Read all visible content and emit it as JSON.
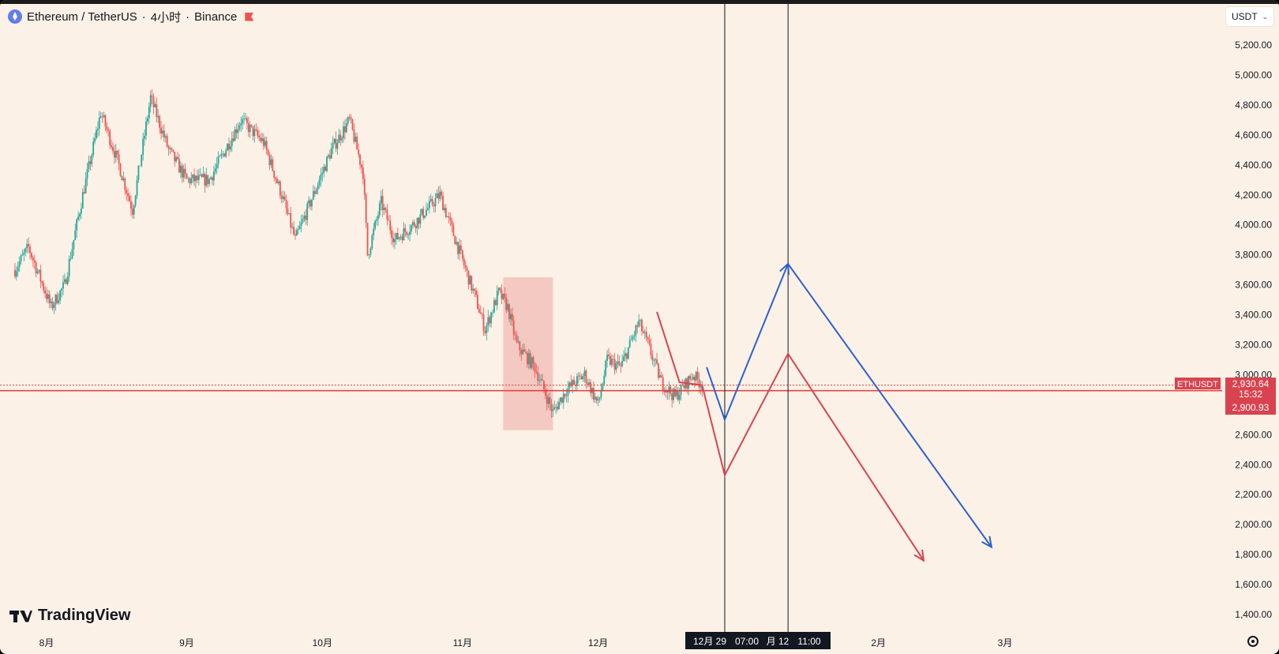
{
  "header": {
    "symbol": "Ethereum / TetherUS",
    "interval": "4小时",
    "exchange": "Binance",
    "separator": "·"
  },
  "currency": {
    "label": "USDT"
  },
  "branding": {
    "logo_text": "TradingView"
  },
  "icons": {
    "flag": "flag-icon",
    "settings": "gear-icon",
    "chevron": "chevron-down-icon",
    "coin": "ethereum-logo-icon"
  },
  "colors": {
    "background": "#fbf1e6",
    "up": "#26a69a",
    "down": "#ef5350",
    "price_line": "#e53935",
    "blue_projection": "#2f5fd0",
    "red_projection": "#d9434f",
    "highlight_box": "#f0b8b0"
  },
  "price_badge": {
    "symbol": "ETHUSDT",
    "price": "2,930.64",
    "countdown": "15:32",
    "price2": "2,900.93"
  },
  "chart_data": {
    "type": "candlestick",
    "title": "",
    "x_tick_labels": [
      "8月",
      "9月",
      "10月",
      "11月",
      "12月",
      "2月",
      "3月"
    ],
    "x_range": [
      "2025-07-25",
      "2026-03-20"
    ],
    "y_tick_labels": [
      "5,200.00",
      "5,000.00",
      "4,800.00",
      "4,600.00",
      "4,400.00",
      "4,200.00",
      "4,000.00",
      "3,800.00",
      "3,600.00",
      "3,400.00",
      "3,200.00",
      "3,000.00",
      "2,600.00",
      "2,400.00",
      "2,200.00",
      "2,000.00",
      "1,800.00",
      "1,600.00",
      "1,400.00"
    ],
    "y_range": [
      1350,
      5220
    ],
    "current_price": 2930.64,
    "secondary_price": 2900.93,
    "crosshair_labels": [
      "12月 29",
      "07:00",
      "月 12",
      "11:00"
    ],
    "price_path": [
      {
        "x": "2025-07-25",
        "y": 3700
      },
      {
        "x": "2025-07-28",
        "y": 3850
      },
      {
        "x": "2025-08-02",
        "y": 3450
      },
      {
        "x": "2025-08-05",
        "y": 3600
      },
      {
        "x": "2025-08-09",
        "y": 4200
      },
      {
        "x": "2025-08-13",
        "y": 4750
      },
      {
        "x": "2025-08-17",
        "y": 4400
      },
      {
        "x": "2025-08-20",
        "y": 4100
      },
      {
        "x": "2025-08-24",
        "y": 4850
      },
      {
        "x": "2025-08-28",
        "y": 4500
      },
      {
        "x": "2025-09-01",
        "y": 4300
      },
      {
        "x": "2025-09-06",
        "y": 4300
      },
      {
        "x": "2025-09-13",
        "y": 4700
      },
      {
        "x": "2025-09-18",
        "y": 4550
      },
      {
        "x": "2025-09-22",
        "y": 4200
      },
      {
        "x": "2025-09-25",
        "y": 3900
      },
      {
        "x": "2025-09-29",
        "y": 4200
      },
      {
        "x": "2025-10-03",
        "y": 4500
      },
      {
        "x": "2025-10-07",
        "y": 4700
      },
      {
        "x": "2025-10-10",
        "y": 4350
      },
      {
        "x": "2025-10-11",
        "y": 3800
      },
      {
        "x": "2025-10-14",
        "y": 4150
      },
      {
        "x": "2025-10-17",
        "y": 3900
      },
      {
        "x": "2025-10-21",
        "y": 4000
      },
      {
        "x": "2025-10-27",
        "y": 4200
      },
      {
        "x": "2025-10-31",
        "y": 3850
      },
      {
        "x": "2025-11-04",
        "y": 3500
      },
      {
        "x": "2025-11-06",
        "y": 3300
      },
      {
        "x": "2025-11-09",
        "y": 3550
      },
      {
        "x": "2025-11-11",
        "y": 3450
      },
      {
        "x": "2025-11-13",
        "y": 3200
      },
      {
        "x": "2025-11-17",
        "y": 3050
      },
      {
        "x": "2025-11-21",
        "y": 2750
      },
      {
        "x": "2025-11-24",
        "y": 2900
      },
      {
        "x": "2025-11-28",
        "y": 3000
      },
      {
        "x": "2025-12-01",
        "y": 2800
      },
      {
        "x": "2025-12-03",
        "y": 3100
      },
      {
        "x": "2025-12-06",
        "y": 3050
      },
      {
        "x": "2025-12-10",
        "y": 3350
      },
      {
        "x": "2025-12-12",
        "y": 3200
      },
      {
        "x": "2025-12-15",
        "y": 2950
      },
      {
        "x": "2025-12-18",
        "y": 2850
      },
      {
        "x": "2025-12-22",
        "y": 3000
      },
      {
        "x": "2025-12-24",
        "y": 2930
      }
    ],
    "projections": [
      {
        "color": "blue",
        "points": [
          {
            "x": "2025-12-25",
            "y": 3050
          },
          {
            "x": "2025-12-29",
            "y": 2700
          },
          {
            "x": "2026-01-12",
            "y": 3740
          },
          {
            "x": "2026-02-26",
            "y": 1850
          }
        ]
      },
      {
        "color": "red",
        "points": [
          {
            "x": "2025-12-14",
            "y": 3420
          },
          {
            "x": "2025-12-19",
            "y": 2950
          },
          {
            "x": "2025-12-24",
            "y": 2930
          },
          {
            "x": "2025-12-29",
            "y": 2330
          },
          {
            "x": "2026-01-12",
            "y": 3140
          },
          {
            "x": "2026-02-11",
            "y": 1760
          }
        ]
      }
    ],
    "highlight_zone": {
      "x_start": "2025-11-10",
      "x_end": "2025-11-21",
      "y_low": 2630,
      "y_high": 3650
    },
    "vertical_markers": [
      "2025-12-29",
      "2026-01-12"
    ],
    "grid": false,
    "legend": "none"
  }
}
